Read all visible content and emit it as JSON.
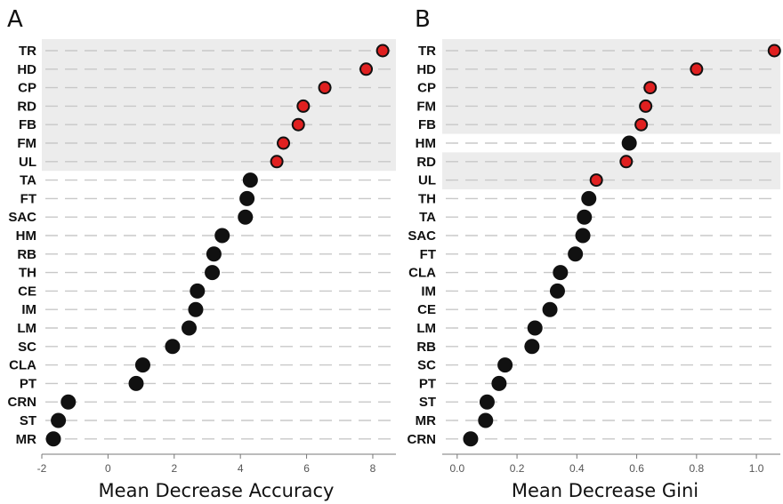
{
  "chart_data": [
    {
      "panel": "A",
      "type": "scatter",
      "style": "dot plot",
      "xlabel": "Mean Decrease Accuracy",
      "xlim": [
        -2,
        8.7
      ],
      "xticks": [
        "-2",
        "0",
        "2",
        "4",
        "6",
        "8"
      ],
      "highlight_count": 7,
      "colors": {
        "highlight": "#e02020",
        "normal": "#111111",
        "band": "#ececec"
      },
      "points": [
        {
          "label": "TR",
          "value": 8.3,
          "highlight": true
        },
        {
          "label": "HD",
          "value": 7.8,
          "highlight": true
        },
        {
          "label": "CP",
          "value": 6.55,
          "highlight": true
        },
        {
          "label": "RD",
          "value": 5.9,
          "highlight": true
        },
        {
          "label": "FB",
          "value": 5.75,
          "highlight": true
        },
        {
          "label": "FM",
          "value": 5.3,
          "highlight": true
        },
        {
          "label": "UL",
          "value": 5.1,
          "highlight": true
        },
        {
          "label": "TA",
          "value": 4.3,
          "highlight": false
        },
        {
          "label": "FT",
          "value": 4.2,
          "highlight": false
        },
        {
          "label": "SAC",
          "value": 4.15,
          "highlight": false
        },
        {
          "label": "HM",
          "value": 3.45,
          "highlight": false
        },
        {
          "label": "RB",
          "value": 3.2,
          "highlight": false
        },
        {
          "label": "TH",
          "value": 3.15,
          "highlight": false
        },
        {
          "label": "CE",
          "value": 2.7,
          "highlight": false
        },
        {
          "label": "IM",
          "value": 2.65,
          "highlight": false
        },
        {
          "label": "LM",
          "value": 2.45,
          "highlight": false
        },
        {
          "label": "SC",
          "value": 1.95,
          "highlight": false
        },
        {
          "label": "CLA",
          "value": 1.05,
          "highlight": false
        },
        {
          "label": "PT",
          "value": 0.85,
          "highlight": false
        },
        {
          "label": "CRN",
          "value": -1.2,
          "highlight": false
        },
        {
          "label": "ST",
          "value": -1.5,
          "highlight": false
        },
        {
          "label": "MR",
          "value": -1.65,
          "highlight": false
        }
      ]
    },
    {
      "panel": "B",
      "type": "scatter",
      "style": "dot plot",
      "xlabel": "Mean Decrease Gini",
      "xlim": [
        -0.05,
        1.08
      ],
      "xticks": [
        "0.0",
        "0.2",
        "0.4",
        "0.6",
        "0.8",
        "1.0"
      ],
      "highlight_count": 8,
      "colors": {
        "highlight": "#e02020",
        "normal": "#111111",
        "band": "#ececec"
      },
      "points": [
        {
          "label": "TR",
          "value": 1.06,
          "highlight": true
        },
        {
          "label": "HD",
          "value": 0.8,
          "highlight": true
        },
        {
          "label": "CP",
          "value": 0.645,
          "highlight": true
        },
        {
          "label": "FM",
          "value": 0.63,
          "highlight": true
        },
        {
          "label": "FB",
          "value": 0.615,
          "highlight": true
        },
        {
          "label": "HM",
          "value": 0.575,
          "highlight": false
        },
        {
          "label": "RD",
          "value": 0.565,
          "highlight": true
        },
        {
          "label": "UL",
          "value": 0.465,
          "highlight": true
        },
        {
          "label": "TH",
          "value": 0.44,
          "highlight": false
        },
        {
          "label": "TA",
          "value": 0.425,
          "highlight": false
        },
        {
          "label": "SAC",
          "value": 0.42,
          "highlight": false
        },
        {
          "label": "FT",
          "value": 0.395,
          "highlight": false
        },
        {
          "label": "CLA",
          "value": 0.345,
          "highlight": false
        },
        {
          "label": "IM",
          "value": 0.335,
          "highlight": false
        },
        {
          "label": "CE",
          "value": 0.31,
          "highlight": false
        },
        {
          "label": "LM",
          "value": 0.26,
          "highlight": false
        },
        {
          "label": "RB",
          "value": 0.25,
          "highlight": false
        },
        {
          "label": "SC",
          "value": 0.16,
          "highlight": false
        },
        {
          "label": "PT",
          "value": 0.14,
          "highlight": false
        },
        {
          "label": "ST",
          "value": 0.1,
          "highlight": false
        },
        {
          "label": "MR",
          "value": 0.095,
          "highlight": false
        },
        {
          "label": "CRN",
          "value": 0.045,
          "highlight": false
        }
      ]
    }
  ]
}
